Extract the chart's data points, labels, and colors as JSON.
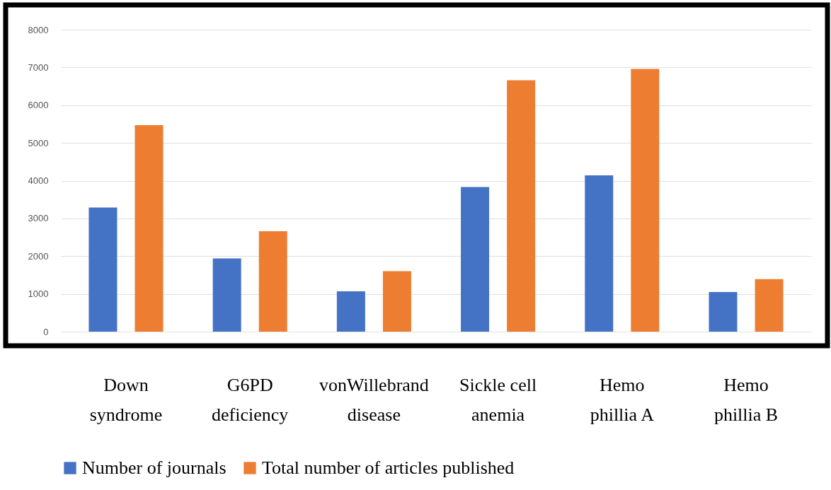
{
  "chart_data": {
    "type": "bar",
    "categories": [
      "Down syndrome",
      "G6PD deficiency",
      "vonWillebrand disease",
      "Sickle cell anemia",
      "Hemo phillia A",
      "Hemo phillia B"
    ],
    "series": [
      {
        "name": "Number of journals",
        "color": "#4472c4",
        "values": [
          3290,
          1940,
          1070,
          3830,
          4140,
          1050
        ]
      },
      {
        "name": "Total number of articles published",
        "color": "#ed7d31",
        "values": [
          5470,
          2660,
          1600,
          6660,
          6960,
          1390
        ]
      }
    ],
    "ylim": [
      0,
      8000
    ],
    "yticks": [
      0,
      1000,
      2000,
      3000,
      4000,
      5000,
      6000,
      7000,
      8000
    ],
    "grid": "y",
    "legend": "bottom"
  }
}
